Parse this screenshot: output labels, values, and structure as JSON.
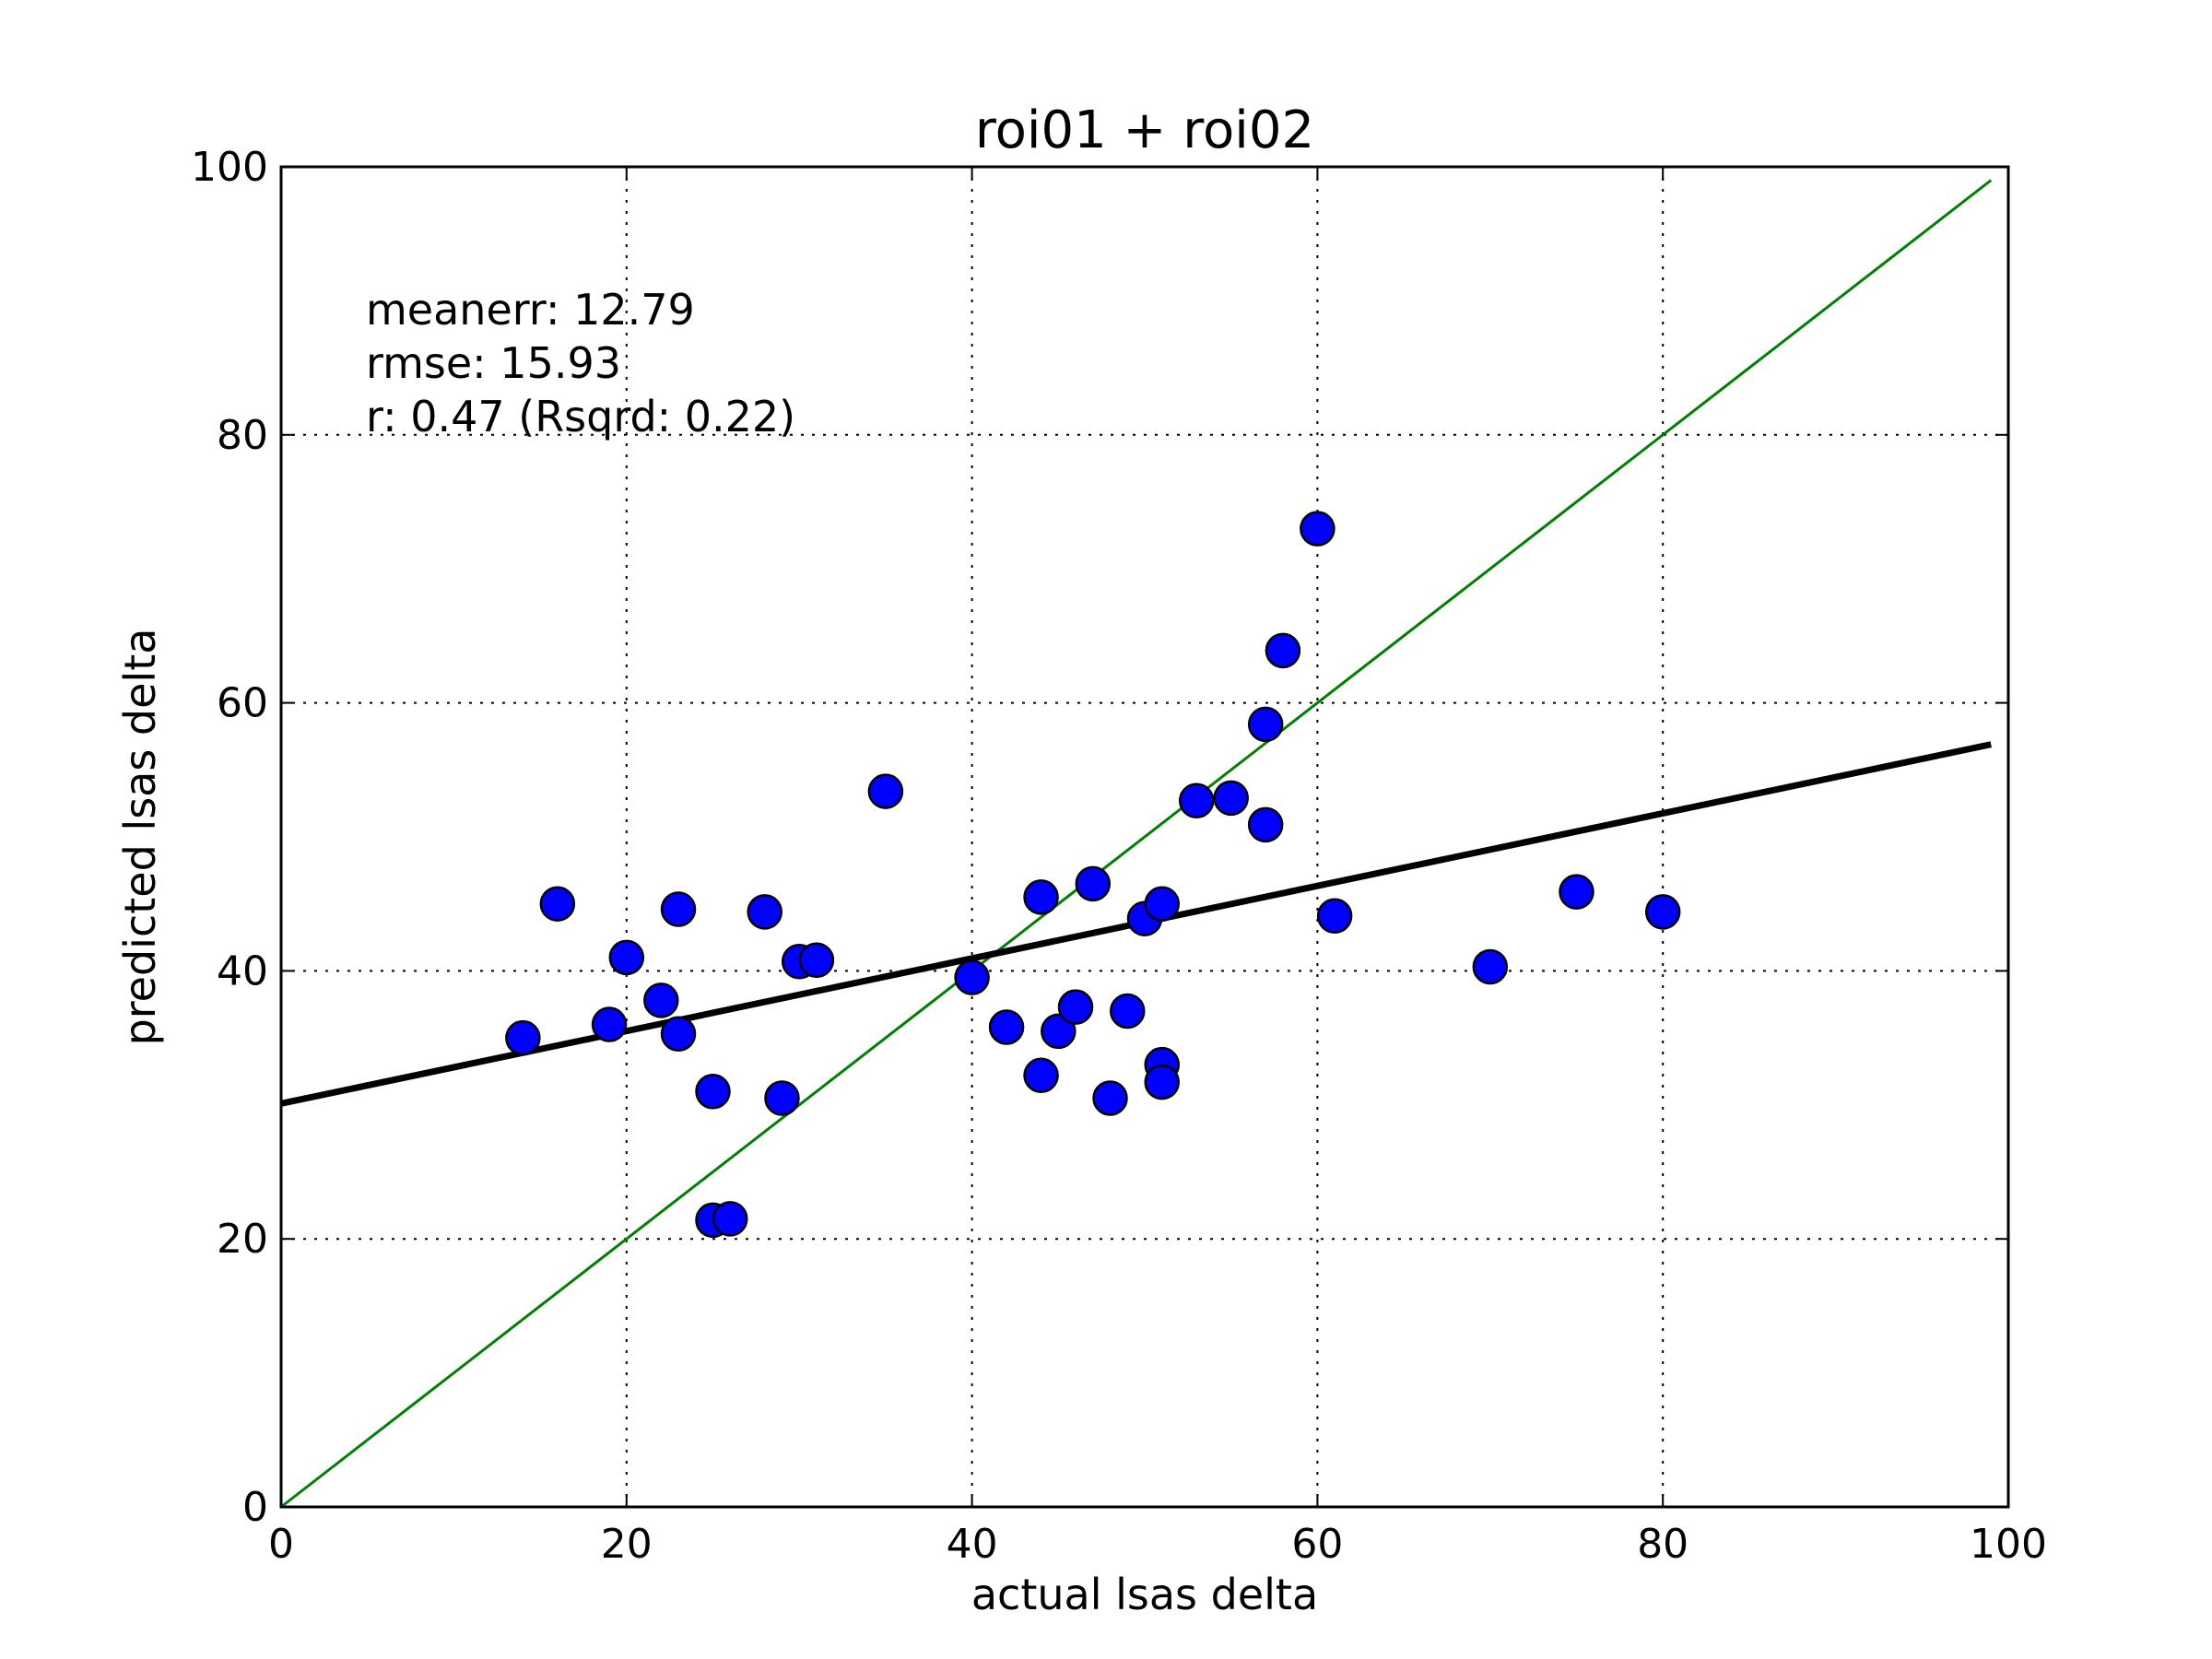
{
  "chart_data": {
    "type": "scatter",
    "title": "roi01 + roi02",
    "xlabel": "actual lsas delta",
    "ylabel": "predicted lsas delta",
    "xlim": [
      0,
      100
    ],
    "ylim": [
      0,
      100
    ],
    "xticks": [
      0,
      20,
      40,
      60,
      80,
      100
    ],
    "yticks": [
      0,
      20,
      40,
      60,
      80,
      100
    ],
    "grid": true,
    "annotations": [
      "meanerr: 12.79",
      "rmse: 15.93",
      "r: 0.47 (Rsqrd: 0.22)"
    ],
    "colors": {
      "points": "#0000ff",
      "identity_line": "#008000",
      "fit_line": "#000000"
    },
    "series": [
      {
        "name": "predictions",
        "kind": "scatter",
        "points": [
          [
            14,
            35
          ],
          [
            16,
            45
          ],
          [
            19,
            36
          ],
          [
            20,
            41
          ],
          [
            22,
            37.8
          ],
          [
            23,
            44.6
          ],
          [
            23,
            35.3
          ],
          [
            25,
            31
          ],
          [
            25,
            21.4
          ],
          [
            26,
            21.5
          ],
          [
            28,
            44.4
          ],
          [
            29,
            30.5
          ],
          [
            30,
            40.7
          ],
          [
            31,
            40.8
          ],
          [
            35,
            53.4
          ],
          [
            40,
            39.5
          ],
          [
            42,
            35.8
          ],
          [
            44,
            45.5
          ],
          [
            44,
            32.2
          ],
          [
            45,
            35.5
          ],
          [
            46,
            37.3
          ],
          [
            47,
            46.5
          ],
          [
            48,
            30.5
          ],
          [
            49,
            37
          ],
          [
            50,
            43.9
          ],
          [
            51,
            45
          ],
          [
            51,
            33
          ],
          [
            51,
            31.7
          ],
          [
            53,
            52.7
          ],
          [
            55,
            52.9
          ],
          [
            57,
            58.4
          ],
          [
            57,
            50.9
          ],
          [
            58,
            63.9
          ],
          [
            60,
            73
          ],
          [
            61,
            44.1
          ],
          [
            70,
            40.3
          ],
          [
            75,
            45.9
          ],
          [
            80,
            44.4
          ]
        ]
      },
      {
        "name": "identity",
        "kind": "line",
        "x": [
          0,
          99
        ],
        "y": [
          0,
          99
        ]
      },
      {
        "name": "fit",
        "kind": "line",
        "x": [
          0,
          99
        ],
        "y": [
          30.1,
          56.9
        ]
      }
    ]
  }
}
